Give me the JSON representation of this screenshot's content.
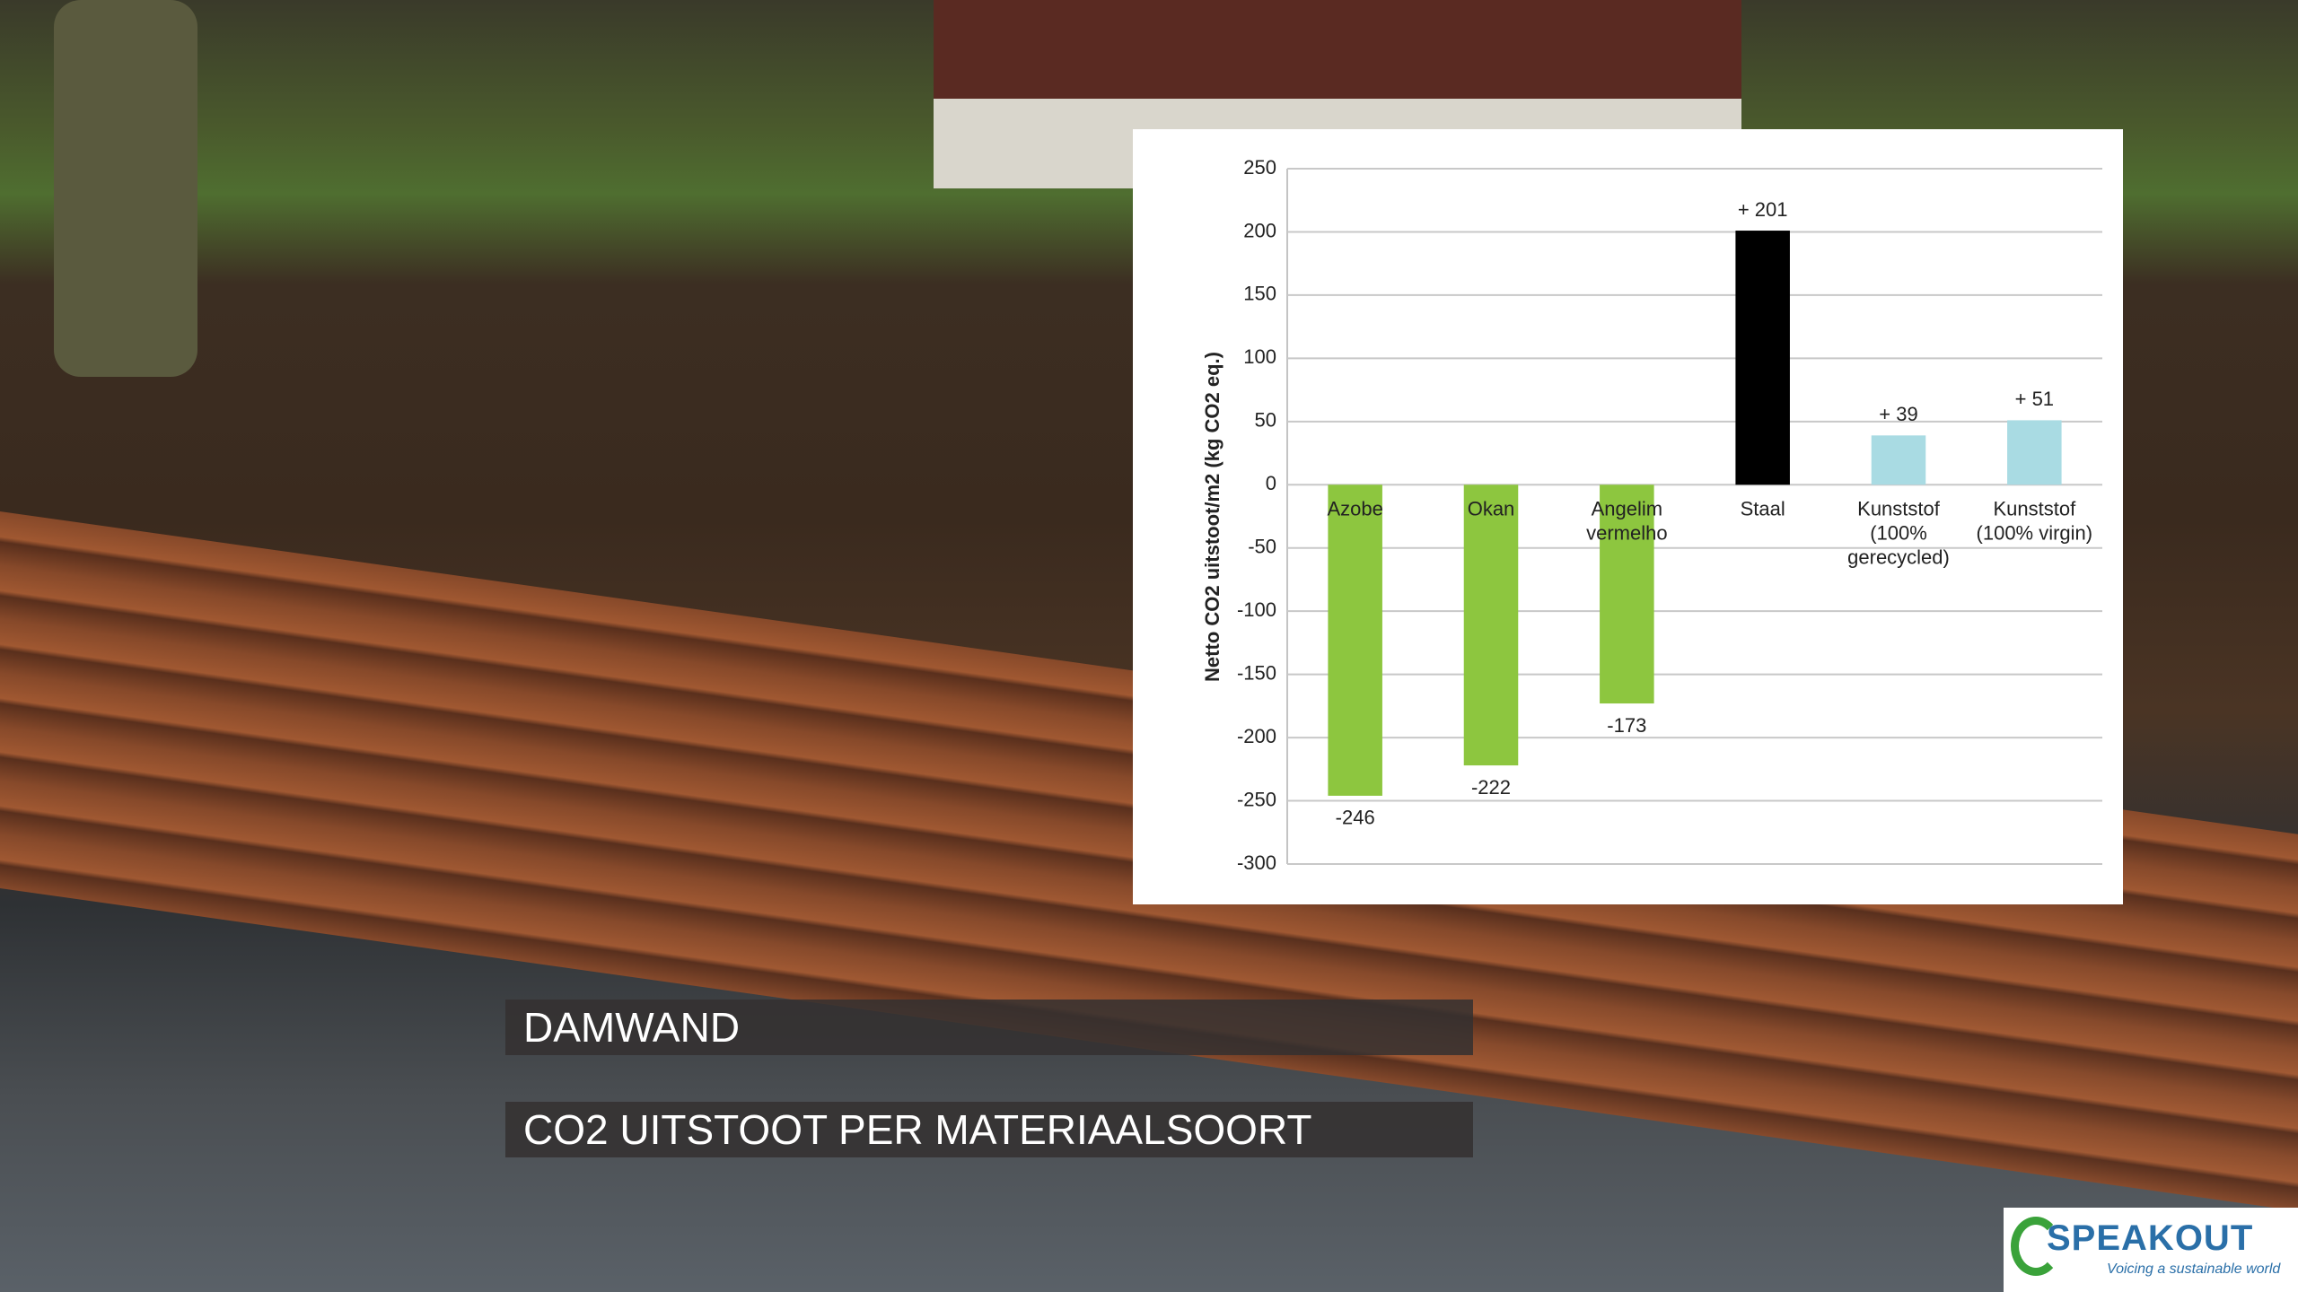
{
  "chart_data": {
    "type": "bar",
    "y_label": "Netto CO2 uitstoot/m2  (kg CO2 eq.)",
    "categories": [
      "Azobe",
      "Okan",
      "Angelim vermelho",
      "Staal",
      "Kunststof (100% gerecycled)",
      "Kunststof (100% virgin)"
    ],
    "values": [
      -246,
      -222,
      -173,
      201,
      39,
      51
    ],
    "value_labels": [
      "-246",
      "-222",
      "-173",
      "+ 201",
      "+ 39",
      "+ 51"
    ],
    "colors": [
      "#8dc63f",
      "#8dc63f",
      "#8dc63f",
      "#000000",
      "#a9dbe3",
      "#a9dbe3"
    ],
    "ylim": [
      -300,
      250
    ],
    "yticks": [
      -300,
      -250,
      -200,
      -150,
      -100,
      -50,
      0,
      50,
      100,
      150,
      200,
      250
    ],
    "grid": true
  },
  "title_boxes": [
    "DAMWAND",
    "CO2 UITSTOOT PER MATERIAALSOORT"
  ],
  "logo": {
    "name": "SPEAKOUT",
    "tagline": "Voicing a sustainable world"
  }
}
